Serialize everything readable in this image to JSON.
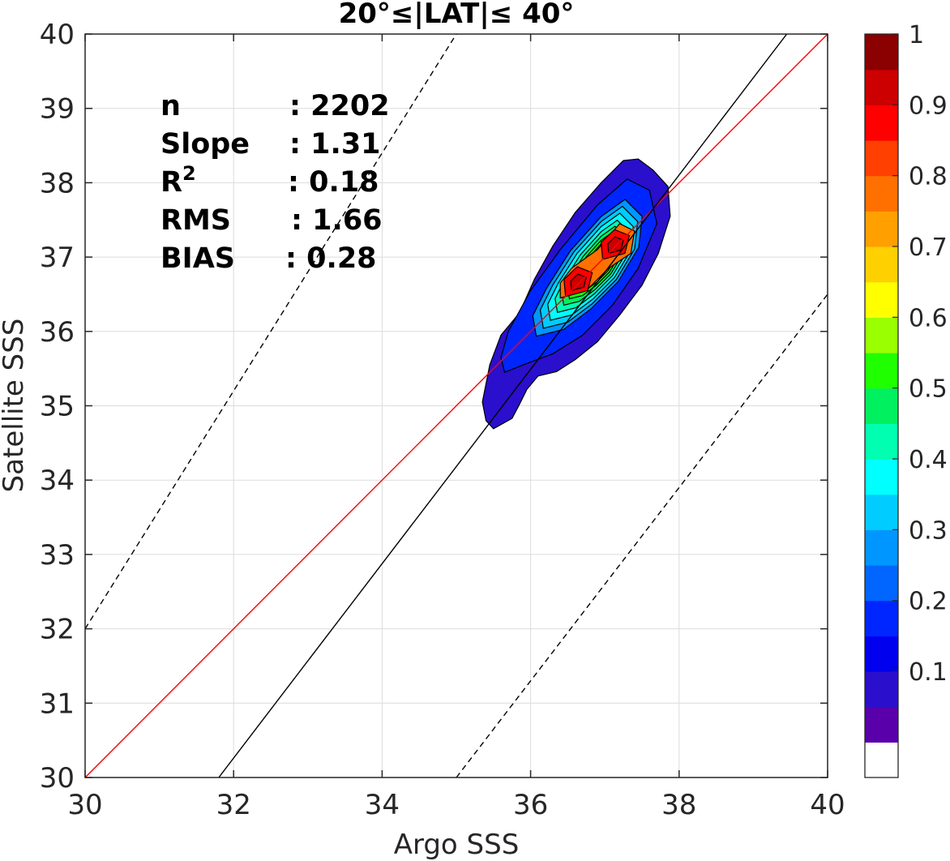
{
  "chart_data": {
    "type": "contour-scatter",
    "title": "20°≤|LAT|≤ 40°",
    "xlabel": "Argo SSS",
    "ylabel": "Satellite SSS",
    "xlim": [
      30,
      40
    ],
    "ylim": [
      30,
      40
    ],
    "xticks": [
      "30",
      "32",
      "34",
      "36",
      "38",
      "40"
    ],
    "yticks": [
      "30",
      "31",
      "32",
      "33",
      "34",
      "35",
      "36",
      "37",
      "38",
      "39",
      "40"
    ],
    "grid": true,
    "stats": [
      {
        "label": "n",
        "value": ": 2202"
      },
      {
        "label": "Slope",
        "value": ": 1.31"
      },
      {
        "label": "R",
        "sup": "2",
        "value": ": 0.18"
      },
      {
        "label": "RMS",
        "value": ": 1.66"
      },
      {
        "label": "BIAS",
        "value": ": 0.28"
      }
    ],
    "lines": [
      {
        "role": "1:1 line",
        "color": "#ff0000",
        "style": "solid",
        "points": [
          [
            30,
            30
          ],
          [
            40,
            40
          ]
        ]
      },
      {
        "role": "regression fit",
        "color": "#000000",
        "style": "solid",
        "points": [
          [
            31.8,
            30
          ],
          [
            39.45,
            40
          ]
        ]
      },
      {
        "role": "upper bound",
        "color": "#000000",
        "style": "dashed",
        "points": [
          [
            30,
            32
          ],
          [
            35,
            40
          ]
        ]
      },
      {
        "role": "lower bound",
        "color": "#000000",
        "style": "dashed",
        "points": [
          [
            35,
            30
          ],
          [
            40,
            36.5
          ]
        ]
      }
    ],
    "density_centers": [
      [
        36.65,
        36.65
      ],
      [
        37.15,
        37.15
      ]
    ],
    "colorbar": {
      "ticks": [
        "0.1",
        "0.2",
        "0.3",
        "0.4",
        "0.5",
        "0.6",
        "0.7",
        "0.8",
        "0.9",
        "1"
      ],
      "colors": [
        "#ffffff",
        "#5a00aa",
        "#2a0fcc",
        "#0000ee",
        "#0026ff",
        "#0066ff",
        "#0096ff",
        "#00ccff",
        "#00ffff",
        "#00ffb0",
        "#00f060",
        "#20ff00",
        "#9aff00",
        "#ffff00",
        "#ffd000",
        "#ffa000",
        "#ff7000",
        "#ff4000",
        "#ff0000",
        "#cc0000",
        "#8b0000"
      ]
    }
  }
}
